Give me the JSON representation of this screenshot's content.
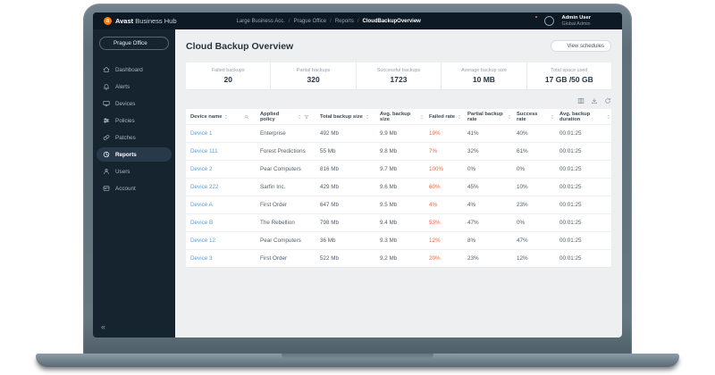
{
  "topbar": {
    "brand_bold": "Avast",
    "brand_rest": " Business Hub",
    "breadcrumb": [
      "Large Business Acc.",
      "Prague Office",
      "Reports",
      "CloudBackupOverview"
    ],
    "right_icons": [
      "gear-icon",
      "notifications-icon",
      "avatar",
      "apps-wallet-icon"
    ],
    "user_name": "Admin User",
    "user_role": "Global Admin"
  },
  "sidebar": {
    "site_selector": "Prague Office",
    "items": [
      {
        "icon": "home",
        "label": "Dashboard",
        "active": false
      },
      {
        "icon": "bell",
        "label": "Alerts",
        "active": false
      },
      {
        "icon": "monitor",
        "label": "Devices",
        "active": false
      },
      {
        "icon": "sliders",
        "label": "Policies",
        "active": false
      },
      {
        "icon": "patch",
        "label": "Patches",
        "active": false
      },
      {
        "icon": "reports",
        "label": "Reports",
        "active": true
      },
      {
        "icon": "user",
        "label": "Users",
        "active": false
      },
      {
        "icon": "card",
        "label": "Account",
        "active": false
      }
    ],
    "collapse_glyph": "«"
  },
  "main": {
    "title": "Cloud Backup Overview",
    "view_schedules_label": "View schedules",
    "stats": [
      {
        "label": "Failed backups",
        "value": "20"
      },
      {
        "label": "Partial backups",
        "value": "320"
      },
      {
        "label": "Successful backups",
        "value": "1723"
      },
      {
        "label": "Average backup size",
        "value": "10 MB"
      },
      {
        "label": "Total space used",
        "value": "17 GB /50 GB"
      }
    ],
    "table_toolbar_icons": [
      "columns",
      "download",
      "refresh"
    ]
  },
  "table": {
    "columns": [
      {
        "label": "Device name",
        "extra": "search"
      },
      {
        "label": "Applied policy",
        "extra": "filter"
      },
      {
        "label": "Total backup size",
        "extra": null
      },
      {
        "label": "Avg. backup size",
        "extra": null
      },
      {
        "label": "Failed rate",
        "extra": null
      },
      {
        "label": "Partial backup rate",
        "extra": null
      },
      {
        "label": "Success rate",
        "extra": null
      },
      {
        "label": "Avg. backup duration",
        "extra": null
      }
    ],
    "rows": [
      [
        "Device 1",
        "Enterprise",
        "492 Mb",
        "9.9 Mb",
        "19%",
        "41%",
        "40%",
        "00:01:25"
      ],
      [
        "Device 111",
        "Forest Predictions",
        "55 Mb",
        "9.8 Mb",
        "7%",
        "32%",
        "61%",
        "00:01:25"
      ],
      [
        "Device 2",
        "Pear Computers",
        "816 Mb",
        "9.7 Mb",
        "100%",
        "0%",
        "0%",
        "00:01:25"
      ],
      [
        "Device 222",
        "Sarfin Inc.",
        "429 Mb",
        "9.6 Mb",
        "60%",
        "45%",
        "10%",
        "00:01:25"
      ],
      [
        "Device A",
        "First Order",
        "647 Mb",
        "9.5 Mb",
        "4%",
        "4%",
        "23%",
        "00:01:25"
      ],
      [
        "Device B",
        "The Rebellion",
        "798 Mb",
        "9.4 Mb",
        "53%",
        "47%",
        "0%",
        "00:01:25"
      ],
      [
        "Device 12",
        "Pear Computers",
        "36 Mb",
        "9.3 Mb",
        "12%",
        "8%",
        "47%",
        "00:01:25"
      ],
      [
        "Device 3",
        "First Order",
        "522 Mb",
        "9.2 Mb",
        "20%",
        "23%",
        "12%",
        "00:01:25"
      ]
    ]
  },
  "colors": {
    "accent_orange": "#ff7800",
    "device_link_blue": "#5b9fd8",
    "failed_rate_red": "#e96a4b",
    "topbar_bg": "#0d1925",
    "sidebar_bg": "#16242f",
    "main_bg": "#edeff1"
  }
}
